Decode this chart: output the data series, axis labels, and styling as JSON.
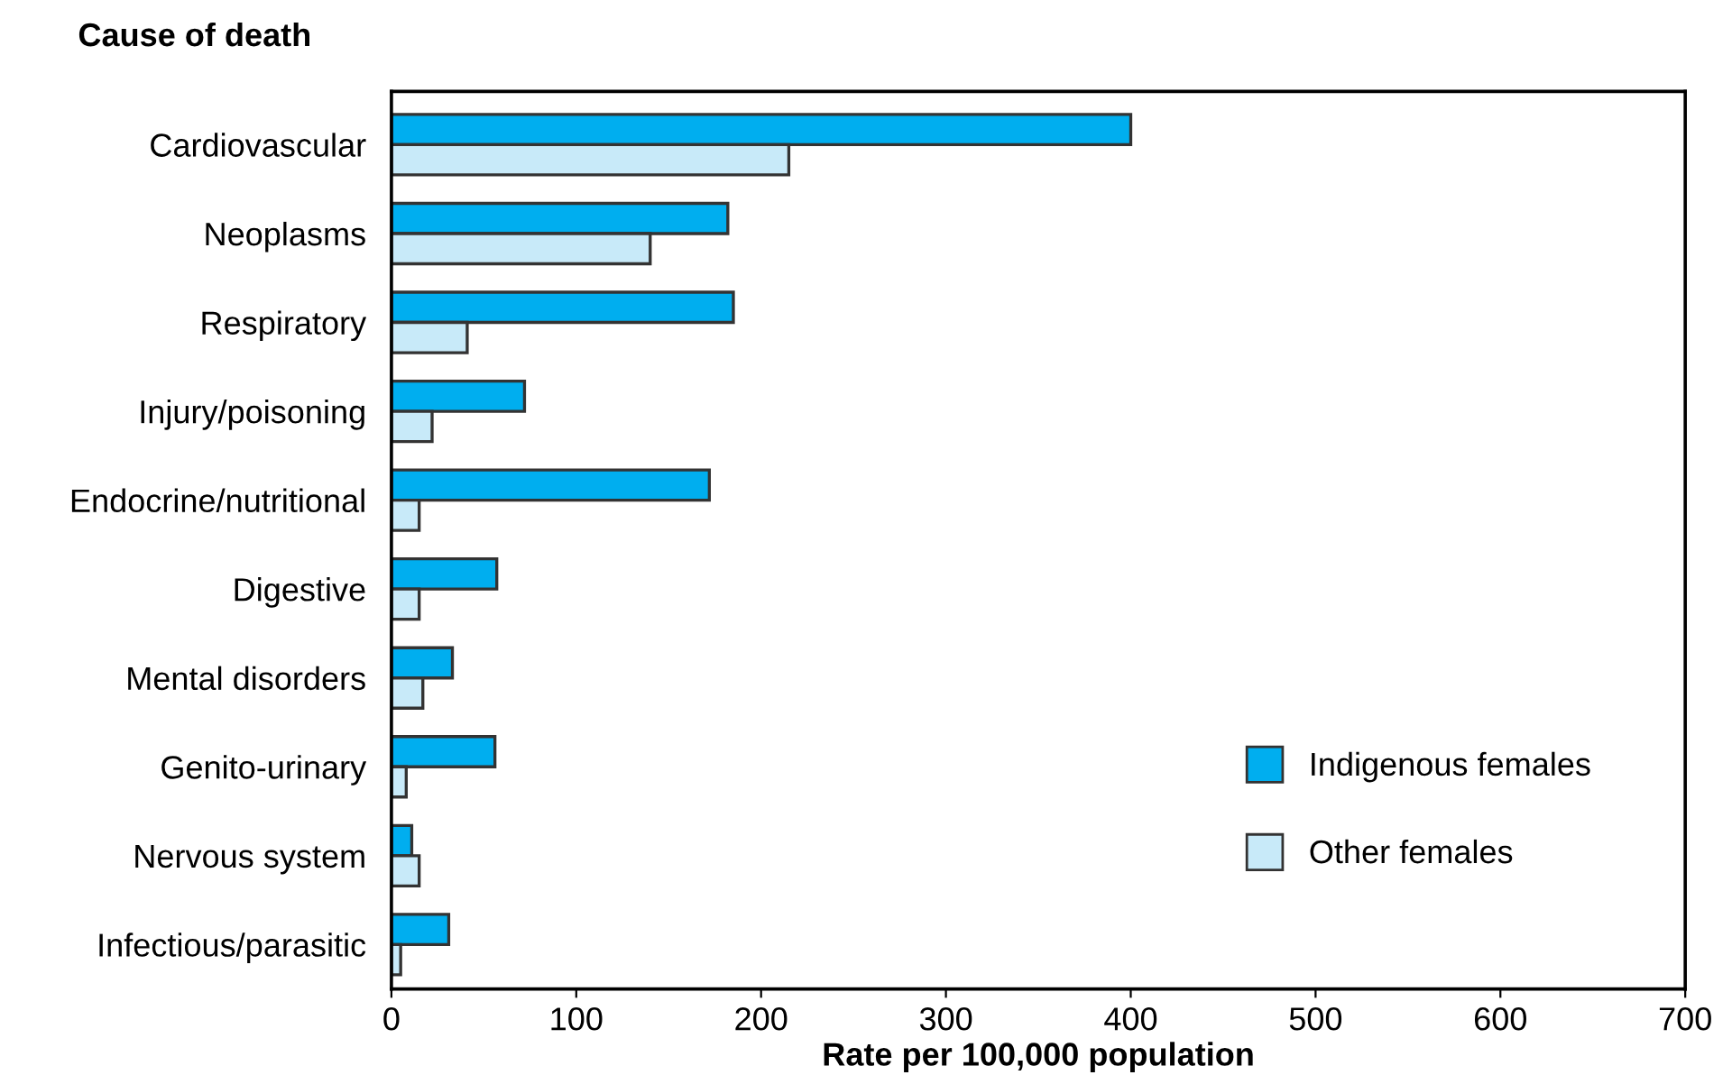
{
  "chart_data": {
    "type": "bar",
    "orientation": "horizontal",
    "ylabel": "Cause of death",
    "xlabel": "Rate per 100,000 population",
    "categories": [
      "Cardiovascular",
      "Neoplasms",
      "Respiratory",
      "Injury/poisoning",
      "Endocrine/nutritional",
      "Digestive",
      "Mental disorders",
      "Genito-urinary",
      "Nervous system",
      "Infectious/parasitic"
    ],
    "series": [
      {
        "name": "Indigenous females",
        "color": "#00aeef",
        "values": [
          400,
          182,
          185,
          72,
          172,
          57,
          33,
          56,
          11,
          31
        ]
      },
      {
        "name": "Other females",
        "color": "#c8eaf9",
        "values": [
          215,
          140,
          41,
          22,
          15,
          15,
          17,
          8,
          15,
          5
        ]
      }
    ],
    "xlim": [
      0,
      700
    ],
    "xticks": [
      0,
      100,
      200,
      300,
      400,
      500,
      600,
      700
    ],
    "grid": false,
    "legend": "bottom right"
  }
}
